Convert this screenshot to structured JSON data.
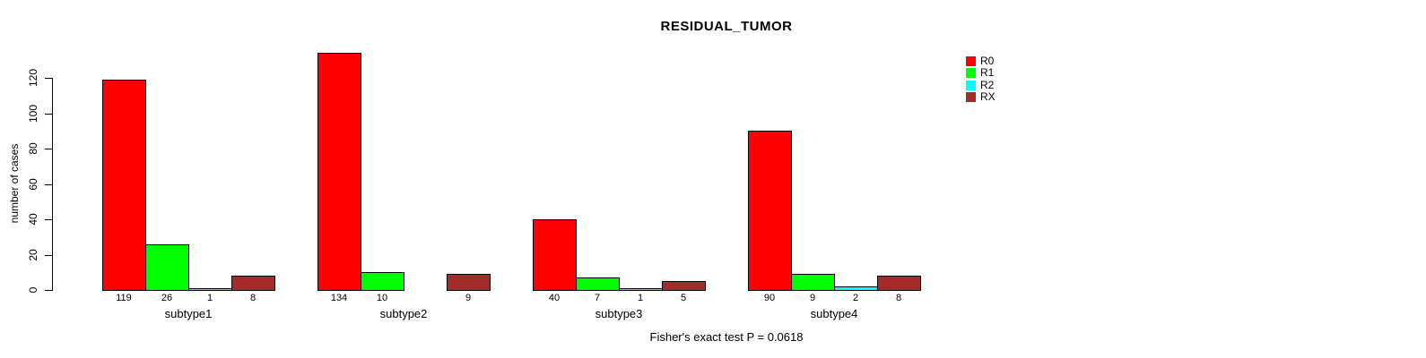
{
  "chart_data": {
    "type": "bar",
    "title": "RESIDUAL_TUMOR",
    "xlabel": "",
    "ylabel": "number of cases",
    "ylim": [
      0,
      120
    ],
    "yticks": [
      0,
      20,
      40,
      60,
      80,
      100,
      120
    ],
    "grid": false,
    "legend_position": "right",
    "categories": [
      "subtype1",
      "subtype2",
      "subtype3",
      "subtype4"
    ],
    "series": [
      {
        "name": "R0",
        "color": "#ff0000",
        "values": [
          119,
          134,
          40,
          90
        ]
      },
      {
        "name": "R1",
        "color": "#00ff00",
        "values": [
          26,
          10,
          7,
          9
        ]
      },
      {
        "name": "R2",
        "color": "#00ffff",
        "values": [
          1,
          0,
          1,
          2
        ]
      },
      {
        "name": "RX",
        "color": "#a52a2a",
        "values": [
          8,
          9,
          5,
          8
        ]
      }
    ],
    "bar_value_labels_shown_only_when_nonzero": true,
    "annotation": "Fisher's exact test P = 0.0618"
  }
}
